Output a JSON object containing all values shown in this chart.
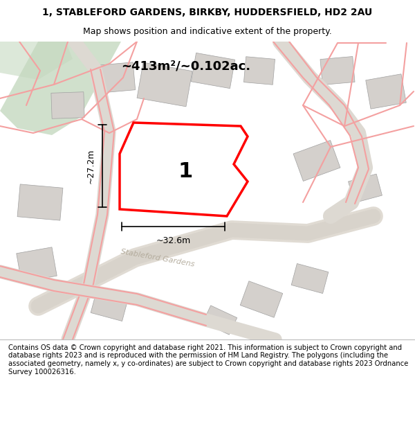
{
  "title_line1": "1, STABLEFORD GARDENS, BIRKBY, HUDDERSFIELD, HD2 2AU",
  "title_line2": "Map shows position and indicative extent of the property.",
  "footer_text": "Contains OS data © Crown copyright and database right 2021. This information is subject to Crown copyright and database rights 2023 and is reproduced with the permission of HM Land Registry. The polygons (including the associated geometry, namely x, y co-ordinates) are subject to Crown copyright and database rights 2023 Ordnance Survey 100026316.",
  "area_label": "~413m²/~0.102ac.",
  "width_label": "~32.6m",
  "height_label": "~27.2m",
  "plot_number": "1",
  "road_label": "Stableford Gardens",
  "map_bg": "#f5f3ef",
  "title_bg": "#ffffff",
  "red_plot_color": "#ff0000",
  "pink_lines": "#f4a0a0",
  "green_fill": "#c5d9c0"
}
